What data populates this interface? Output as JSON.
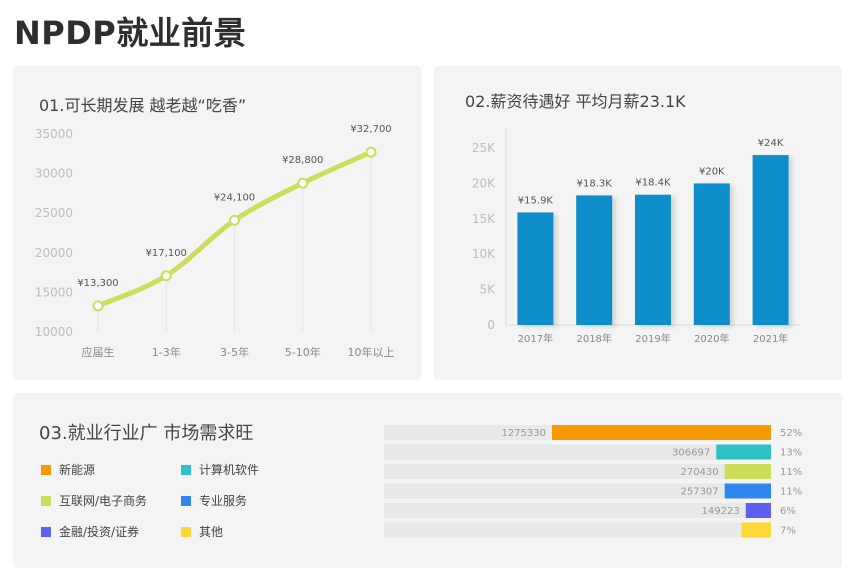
{
  "page": {
    "title": "NPDP就业前景"
  },
  "panel1": {
    "title": "01.可长期发展  越老越“吃香”"
  },
  "panel2": {
    "title": "02.薪资待遇好  平均月薪23.1K"
  },
  "panel3": {
    "title": "03.就业行业广  市场需求旺"
  },
  "colors": {
    "line": "#cddc5a",
    "bar": "#0a8dc9",
    "grid": "#e6e6e6",
    "axis_text": "#bdbdbd",
    "tick_text": "#888888"
  },
  "chart_data": [
    {
      "type": "line",
      "title": "01.可长期发展  越老越“吃香”",
      "categories": [
        "应届生",
        "1-3年",
        "3-5年",
        "5-10年",
        "10年以上"
      ],
      "values": [
        13300,
        17100,
        24100,
        28800,
        32700
      ],
      "value_labels": [
        "¥13,300",
        "¥17,100",
        "¥24,100",
        "¥28,800",
        "¥32,700"
      ],
      "yticks": [
        10000,
        15000,
        20000,
        25000,
        30000,
        35000
      ],
      "ytick_labels": [
        "10000",
        "15000",
        "20000",
        "25000",
        "30000",
        "35000"
      ],
      "ylim": [
        10000,
        35000
      ],
      "smooth": true
    },
    {
      "type": "bar",
      "title": "02.薪资待遇好  平均月薪23.1K",
      "categories": [
        "2017年",
        "2018年",
        "2019年",
        "2020年",
        "2021年"
      ],
      "values": [
        15.9,
        18.3,
        18.4,
        20,
        24
      ],
      "value_labels": [
        "¥15.9K",
        "¥18.3K",
        "¥18.4K",
        "¥20K",
        "¥24K"
      ],
      "yticks": [
        0,
        5,
        10,
        15,
        20,
        25
      ],
      "ytick_labels": [
        "0",
        "5K",
        "10K",
        "15K",
        "20K",
        "25K"
      ],
      "ylim": [
        0,
        25
      ],
      "unit": "K"
    },
    {
      "type": "bar",
      "orientation": "horizontal",
      "title": "03.就业行业广  市场需求旺",
      "categories": [
        "新能源",
        "计算机软件",
        "互联网/电子商务",
        "专业服务",
        "金融/投资/证券",
        "其他"
      ],
      "values": [
        1275330,
        306697,
        270430,
        257307,
        149223,
        null
      ],
      "value_labels": [
        "1275330",
        "306697",
        "270430",
        "257307",
        "149223",
        ""
      ],
      "percent_labels": [
        "52%",
        "13%",
        "11%",
        "11%",
        "6%",
        "7%"
      ],
      "percents": [
        52,
        13,
        11,
        11,
        6,
        7
      ],
      "colors": [
        "#f59a00",
        "#2ec1c4",
        "#cddc5a",
        "#2f86f0",
        "#5f5ff2",
        "#fcd73a"
      ]
    }
  ]
}
